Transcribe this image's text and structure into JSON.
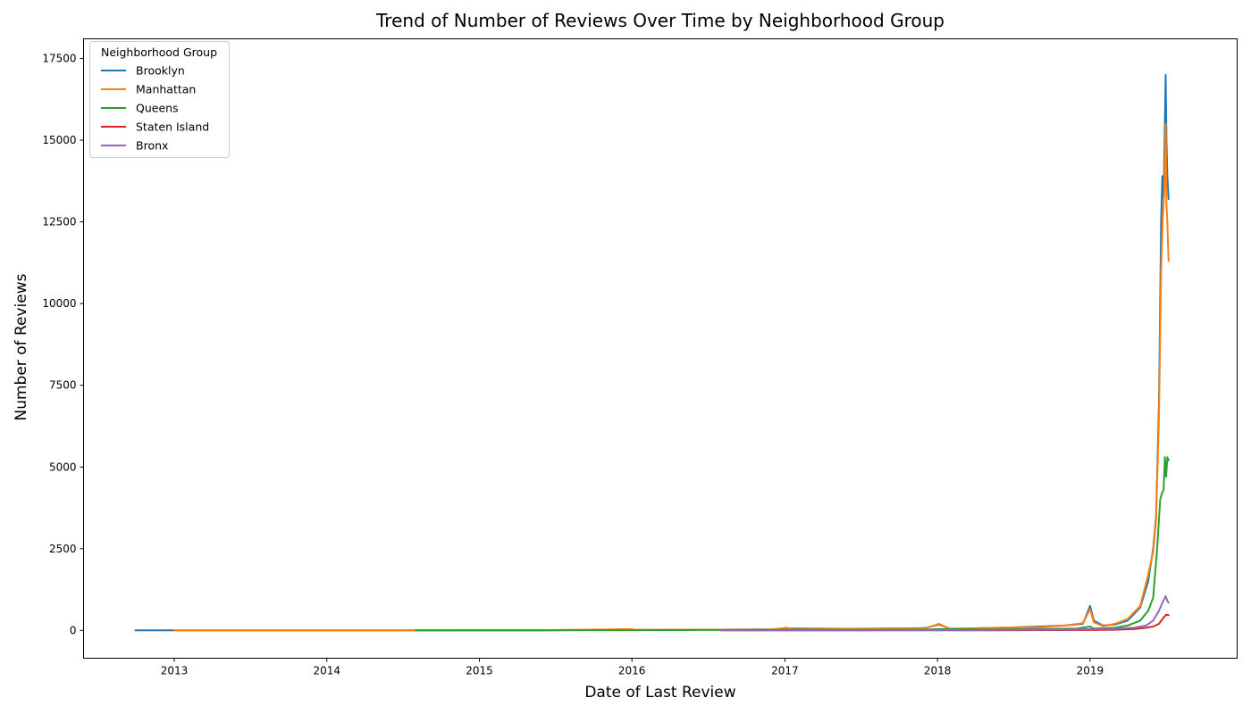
{
  "chart_data": {
    "type": "line",
    "title": "Trend of Number of Reviews Over Time by Neighborhood Group",
    "xlabel": "Date of Last Review",
    "ylabel": "Number of Reviews",
    "x_ticks": [
      "2013",
      "2014",
      "2015",
      "2016",
      "2017",
      "2018",
      "2019"
    ],
    "y_ticks": [
      "0",
      "2500",
      "5000",
      "7500",
      "10000",
      "12500",
      "15000",
      "17500"
    ],
    "xlim": [
      "2012-05-29",
      "2019-12-19"
    ],
    "ylim": [
      -850,
      18100
    ],
    "grid": false,
    "legend": {
      "title": "Neighborhood Group",
      "placement": "top-left"
    },
    "series": [
      {
        "name": "Brooklyn",
        "color": "#1f77b4",
        "points": [
          [
            "2012-09-30",
            1
          ],
          [
            "2013-01-01",
            2
          ],
          [
            "2014-01-01",
            2
          ],
          [
            "2014-08-01",
            3
          ],
          [
            "2015-06-01",
            5
          ],
          [
            "2016-01-01",
            15
          ],
          [
            "2016-06-01",
            20
          ],
          [
            "2016-12-01",
            35
          ],
          [
            "2017-01-05",
            60
          ],
          [
            "2017-06-01",
            50
          ],
          [
            "2017-12-01",
            70
          ],
          [
            "2018-01-05",
            180
          ],
          [
            "2018-02-01",
            50
          ],
          [
            "2018-06-01",
            80
          ],
          [
            "2018-09-01",
            120
          ],
          [
            "2018-11-01",
            150
          ],
          [
            "2018-12-15",
            200
          ],
          [
            "2019-01-01",
            750
          ],
          [
            "2019-01-10",
            300
          ],
          [
            "2019-02-01",
            150
          ],
          [
            "2019-03-01",
            180
          ],
          [
            "2019-04-01",
            300
          ],
          [
            "2019-05-01",
            700
          ],
          [
            "2019-05-20",
            1500
          ],
          [
            "2019-06-01",
            2500
          ],
          [
            "2019-06-08",
            3500
          ],
          [
            "2019-06-15",
            7000
          ],
          [
            "2019-06-20",
            12500
          ],
          [
            "2019-06-23",
            13900
          ],
          [
            "2019-06-26",
            13200
          ],
          [
            "2019-06-29",
            15500
          ],
          [
            "2019-07-01",
            17000
          ],
          [
            "2019-07-03",
            15000
          ],
          [
            "2019-07-05",
            13900
          ],
          [
            "2019-07-08",
            13200
          ]
        ]
      },
      {
        "name": "Manhattan",
        "color": "#ff7f0e",
        "points": [
          [
            "2013-01-01",
            3
          ],
          [
            "2014-01-01",
            3
          ],
          [
            "2014-08-01",
            5
          ],
          [
            "2015-06-01",
            8
          ],
          [
            "2016-01-01",
            40
          ],
          [
            "2016-01-10",
            15
          ],
          [
            "2016-06-01",
            20
          ],
          [
            "2016-12-01",
            30
          ],
          [
            "2017-01-05",
            80
          ],
          [
            "2017-01-20",
            30
          ],
          [
            "2017-06-01",
            50
          ],
          [
            "2017-12-01",
            60
          ],
          [
            "2018-01-05",
            200
          ],
          [
            "2018-02-01",
            40
          ],
          [
            "2018-06-01",
            90
          ],
          [
            "2018-09-01",
            100
          ],
          [
            "2018-11-01",
            150
          ],
          [
            "2018-12-15",
            220
          ],
          [
            "2019-01-01",
            650
          ],
          [
            "2019-01-10",
            250
          ],
          [
            "2019-02-01",
            130
          ],
          [
            "2019-03-01",
            200
          ],
          [
            "2019-04-01",
            350
          ],
          [
            "2019-05-01",
            750
          ],
          [
            "2019-05-20",
            1700
          ],
          [
            "2019-06-01",
            2400
          ],
          [
            "2019-06-08",
            3400
          ],
          [
            "2019-06-15",
            6500
          ],
          [
            "2019-06-20",
            11000
          ],
          [
            "2019-06-24",
            12600
          ],
          [
            "2019-06-28",
            13500
          ],
          [
            "2019-07-01",
            15500
          ],
          [
            "2019-07-03",
            13000
          ],
          [
            "2019-07-05",
            12500
          ],
          [
            "2019-07-06",
            12000
          ],
          [
            "2019-07-08",
            11300
          ]
        ]
      },
      {
        "name": "Queens",
        "color": "#2ca02c",
        "points": [
          [
            "2014-08-01",
            1
          ],
          [
            "2015-06-01",
            4
          ],
          [
            "2016-01-01",
            8
          ],
          [
            "2016-06-01",
            12
          ],
          [
            "2016-12-01",
            15
          ],
          [
            "2017-06-01",
            20
          ],
          [
            "2017-12-01",
            25
          ],
          [
            "2018-01-05",
            40
          ],
          [
            "2018-06-01",
            35
          ],
          [
            "2018-12-01",
            60
          ],
          [
            "2019-01-01",
            120
          ],
          [
            "2019-01-10",
            60
          ],
          [
            "2019-03-01",
            80
          ],
          [
            "2019-04-01",
            150
          ],
          [
            "2019-05-01",
            300
          ],
          [
            "2019-05-20",
            600
          ],
          [
            "2019-06-01",
            1000
          ],
          [
            "2019-06-10",
            2400
          ],
          [
            "2019-06-18",
            4000
          ],
          [
            "2019-06-22",
            4200
          ],
          [
            "2019-06-26",
            4300
          ],
          [
            "2019-06-29",
            5300
          ],
          [
            "2019-07-02",
            4700
          ],
          [
            "2019-07-05",
            5300
          ],
          [
            "2019-07-08",
            5200
          ]
        ]
      },
      {
        "name": "Staten Island",
        "color": "#d62728",
        "points": [
          [
            "2016-08-01",
            2
          ],
          [
            "2017-06-01",
            3
          ],
          [
            "2018-06-01",
            5
          ],
          [
            "2019-01-01",
            12
          ],
          [
            "2019-03-01",
            20
          ],
          [
            "2019-04-15",
            40
          ],
          [
            "2019-05-15",
            80
          ],
          [
            "2019-06-01",
            120
          ],
          [
            "2019-06-15",
            200
          ],
          [
            "2019-06-25",
            380
          ],
          [
            "2019-07-02",
            480
          ],
          [
            "2019-07-08",
            470
          ]
        ]
      },
      {
        "name": "Bronx",
        "color": "#9467bd",
        "points": [
          [
            "2016-08-01",
            3
          ],
          [
            "2017-06-01",
            5
          ],
          [
            "2017-12-01",
            10
          ],
          [
            "2018-06-01",
            15
          ],
          [
            "2018-12-01",
            30
          ],
          [
            "2019-01-01",
            40
          ],
          [
            "2019-03-01",
            50
          ],
          [
            "2019-04-15",
            80
          ],
          [
            "2019-05-15",
            150
          ],
          [
            "2019-06-01",
            300
          ],
          [
            "2019-06-15",
            600
          ],
          [
            "2019-06-25",
            900
          ],
          [
            "2019-07-01",
            1050
          ],
          [
            "2019-07-05",
            900
          ],
          [
            "2019-07-08",
            850
          ]
        ]
      }
    ]
  }
}
